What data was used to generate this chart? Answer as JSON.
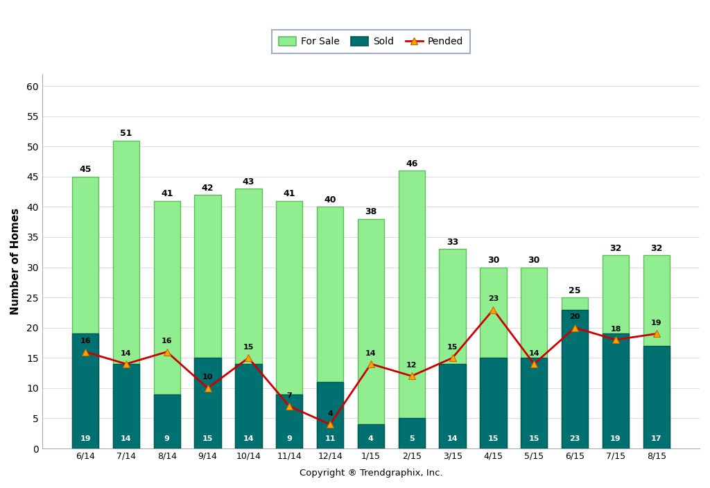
{
  "categories": [
    "6/14",
    "7/14",
    "8/14",
    "9/14",
    "10/14",
    "11/14",
    "12/14",
    "1/15",
    "2/15",
    "3/15",
    "4/15",
    "5/15",
    "6/15",
    "7/15",
    "8/15"
  ],
  "for_sale": [
    45,
    51,
    41,
    42,
    43,
    41,
    40,
    38,
    46,
    33,
    30,
    30,
    25,
    32,
    32
  ],
  "sold": [
    19,
    14,
    9,
    15,
    14,
    9,
    11,
    4,
    5,
    14,
    15,
    15,
    23,
    19,
    17
  ],
  "pended": [
    16,
    14,
    16,
    10,
    15,
    7,
    4,
    14,
    12,
    15,
    23,
    14,
    20,
    18,
    19
  ],
  "for_sale_color": "#90EE90",
  "for_sale_edge": "#5DBB5D",
  "sold_color": "#007070",
  "sold_edge": "#005555",
  "pended_color": "#CC0000",
  "pended_marker_facecolor": "#FFA500",
  "pended_marker_edgecolor": "#CC6600",
  "ylabel": "Number of Homes",
  "xlabel": "Copyright ® Trendgraphix, Inc.",
  "ylim": [
    0,
    62
  ],
  "yticks": [
    0,
    5,
    10,
    15,
    20,
    25,
    30,
    35,
    40,
    45,
    50,
    55,
    60
  ],
  "legend_for_sale": "For Sale",
  "legend_sold": "Sold",
  "legend_pended": "Pended",
  "bar_width": 0.65,
  "figure_bg": "#ffffff",
  "axes_bg": "#ffffff",
  "grid_color": "#dddddd",
  "legend_edge": "#8899bb"
}
